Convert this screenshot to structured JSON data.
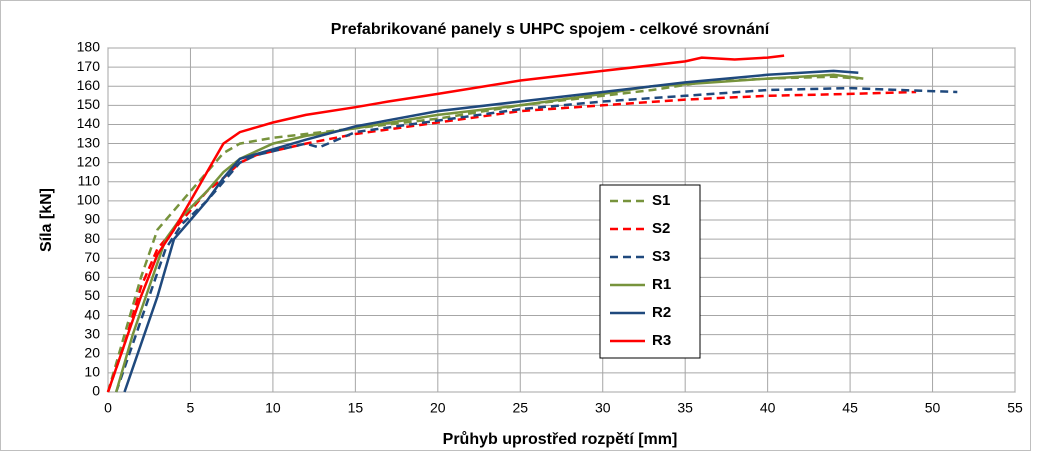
{
  "chart_data": {
    "type": "line",
    "title": "Prefabrikované panely s UHPC spojem - celkové srovnání",
    "xlabel": "Průhyb  uprostřed rozpětí [mm]",
    "ylabel": "Síla [kN]",
    "xlim": [
      0,
      55
    ],
    "xticks": [
      0,
      5,
      10,
      15,
      20,
      25,
      30,
      35,
      40,
      45,
      50,
      55
    ],
    "ylim": [
      0,
      180
    ],
    "yticks": [
      0,
      10,
      20,
      30,
      40,
      50,
      60,
      70,
      80,
      90,
      100,
      110,
      120,
      130,
      140,
      150,
      160,
      170,
      180
    ],
    "grid": true,
    "legend": "center",
    "series": [
      {
        "name": "S1",
        "color": "#77933c",
        "style": "dashed",
        "x": [
          0,
          1,
          2,
          3,
          4,
          5,
          6,
          7,
          8,
          10,
          12,
          15,
          20,
          25,
          30,
          33,
          36,
          40,
          44,
          45.5
        ],
        "values": [
          0,
          30,
          60,
          85,
          95,
          105,
          115,
          125,
          130,
          133,
          135,
          138,
          143,
          150,
          155,
          158,
          162,
          164,
          165,
          164
        ]
      },
      {
        "name": "S2",
        "color": "#ff0000",
        "style": "dashed",
        "x": [
          0,
          1,
          2,
          3,
          4,
          5,
          6,
          7,
          8,
          9,
          12,
          15,
          20,
          25,
          30,
          35,
          40,
          45,
          49
        ],
        "values": [
          0,
          25,
          55,
          75,
          85,
          95,
          105,
          112,
          120,
          124,
          130,
          135,
          141,
          147,
          150,
          153,
          155,
          156,
          157
        ]
      },
      {
        "name": "S3",
        "color": "#1f497d",
        "style": "dashed",
        "x": [
          0.5,
          1.5,
          2.5,
          3.5,
          4.5,
          6,
          7,
          8,
          9,
          12,
          12.8,
          15,
          20,
          25,
          30,
          35,
          40,
          45,
          48,
          51.5
        ],
        "values": [
          0,
          25,
          50,
          75,
          88,
          100,
          110,
          120,
          124,
          130,
          128,
          136,
          142,
          148,
          152,
          155,
          158,
          159,
          158,
          157
        ]
      },
      {
        "name": "R1",
        "color": "#77933c",
        "style": "solid",
        "x": [
          0.5,
          1.5,
          2.5,
          3.5,
          4.5,
          6,
          7,
          8,
          10,
          12,
          15,
          20,
          25,
          30,
          33,
          35,
          40,
          44,
          45.8
        ],
        "values": [
          0,
          30,
          55,
          80,
          92,
          105,
          115,
          122,
          130,
          134,
          138,
          145,
          150,
          156,
          160,
          161,
          164,
          166,
          164
        ]
      },
      {
        "name": "R2",
        "color": "#1f497d",
        "style": "solid",
        "x": [
          1,
          2,
          3,
          4,
          5,
          6,
          7,
          8,
          10,
          12,
          15,
          20,
          25,
          30,
          35,
          40,
          44,
          45.5
        ],
        "values": [
          0,
          25,
          50,
          80,
          90,
          100,
          112,
          122,
          127,
          132,
          139,
          147,
          152,
          157,
          162,
          166,
          168,
          167
        ]
      },
      {
        "name": "R3",
        "color": "#ff0000",
        "style": "solid",
        "x": [
          0,
          1,
          2,
          3,
          4,
          5,
          6,
          7,
          8,
          10,
          12,
          15,
          17,
          20,
          25,
          30,
          35,
          36,
          38,
          40,
          41
        ],
        "values": [
          0,
          25,
          50,
          72,
          85,
          100,
          115,
          130,
          136,
          141,
          145,
          149,
          152,
          156,
          163,
          168,
          173,
          175,
          174,
          175,
          176
        ]
      }
    ]
  }
}
